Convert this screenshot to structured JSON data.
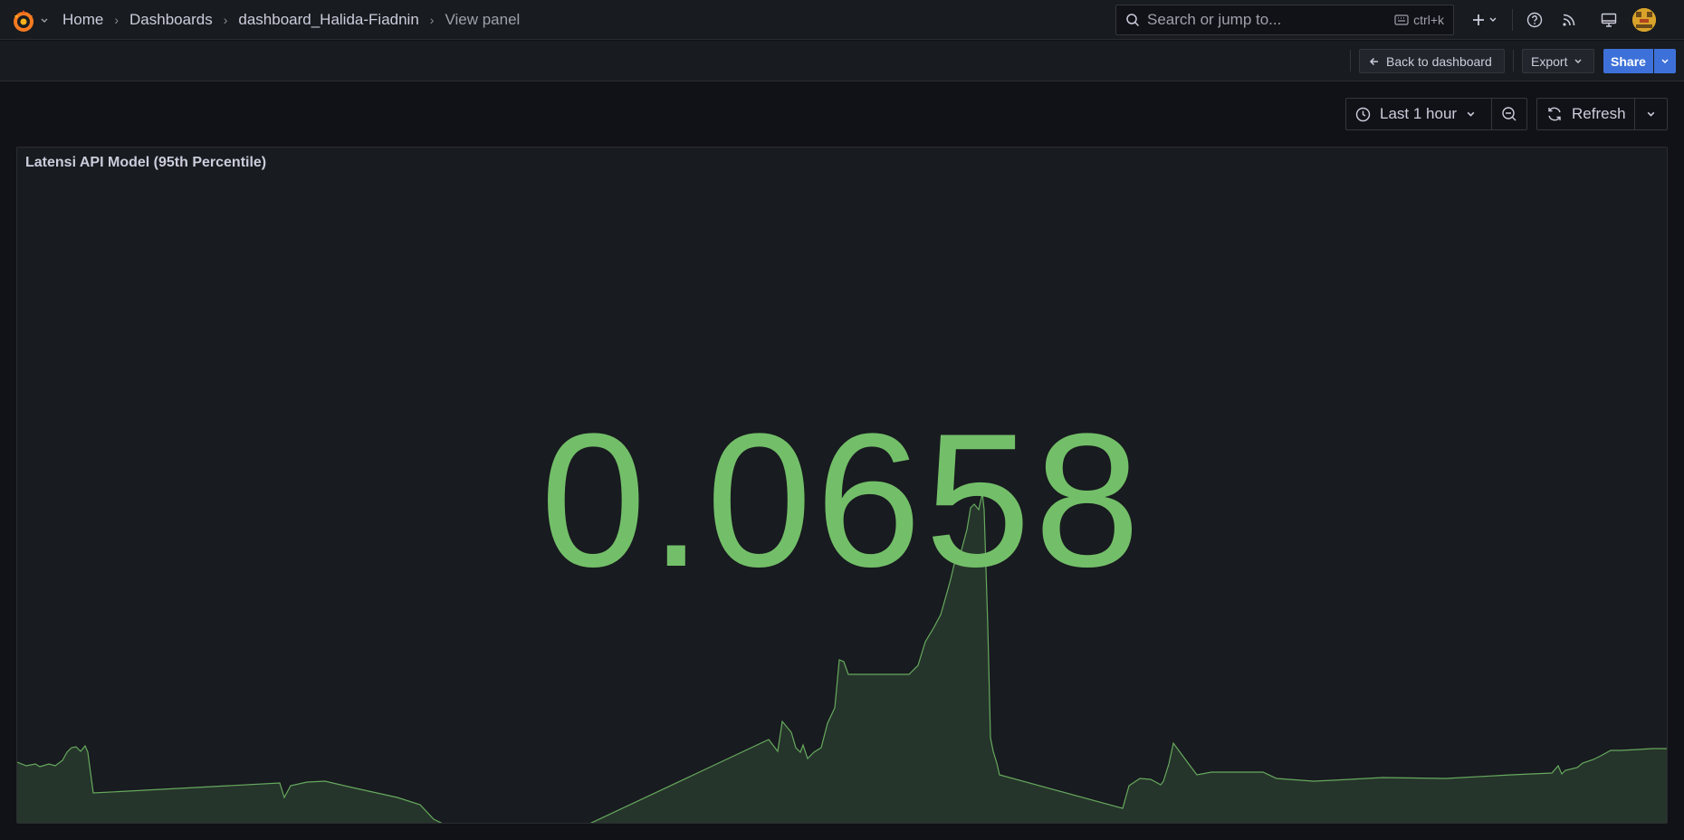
{
  "breadcrumb": {
    "home": "Home",
    "dashboards": "Dashboards",
    "dashboard": "dashboard_Halida-Fiadnin",
    "current": "View panel"
  },
  "search": {
    "placeholder": "Search or jump to...",
    "shortcut": "ctrl+k"
  },
  "toolbar": {
    "back_label": "Back to dashboard",
    "export_label": "Export",
    "share_label": "Share"
  },
  "time_controls": {
    "range_label": "Last 1 hour",
    "refresh_label": "Refresh"
  },
  "panel": {
    "title": "Latensi API Model (95th Percentile)",
    "value": "0.0658",
    "color": "#73bf69"
  },
  "colors": {
    "accent": "#3d71d9",
    "stat_green": "#73bf69",
    "panel_bg": "#181b1f"
  },
  "icons": [
    "grafana-logo-icon",
    "search-icon",
    "keyboard-icon",
    "plus-icon",
    "help-icon",
    "news-icon",
    "kiosk-icon",
    "avatar",
    "arrow-left-icon",
    "chevron-down-icon",
    "clock-icon",
    "zoom-out-icon",
    "refresh-icon"
  ]
}
